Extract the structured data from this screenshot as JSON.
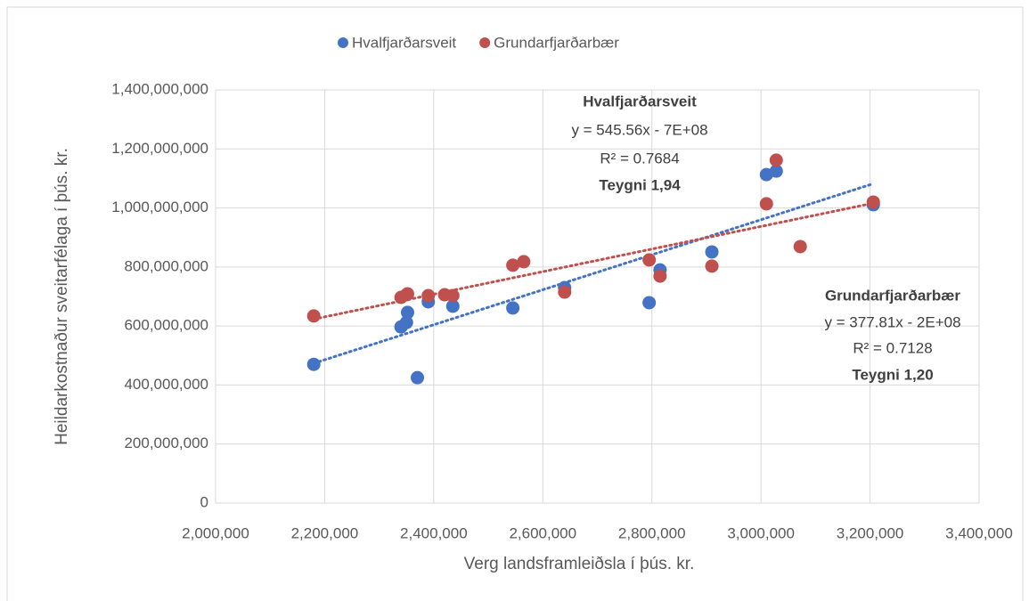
{
  "chart_data": {
    "type": "scatter",
    "x_label": "Verg landsframleiðsla í þús. kr.",
    "y_label": "Heildarkostnaður sveitarfélaga í þús. kr.",
    "series": [
      {
        "name": "Hvalfjarðarsveit",
        "color": "#4472c4",
        "x": [
          2180000,
          2340000,
          2350000,
          2352000,
          2390000,
          2370000,
          2435000,
          2545000,
          2640000,
          2795000,
          2815000,
          2910000,
          3010000,
          3028000,
          3206000
        ],
        "values": [
          470000000,
          597000000,
          612000000,
          646000000,
          682000000,
          425000000,
          667000000,
          661000000,
          730000000,
          679000000,
          790000000,
          851000000,
          1113000000,
          1125000000,
          1011000000
        ]
      },
      {
        "name": "Grundarfjarðarbær",
        "color": "#c0504d",
        "x": [
          2180000,
          2340000,
          2350000,
          2352000,
          2390000,
          2420000,
          2435000,
          2545000,
          2565000,
          2640000,
          2795000,
          2815000,
          2910000,
          3010000,
          3028000,
          3072000,
          3206000
        ],
        "values": [
          634000000,
          697000000,
          706000000,
          709000000,
          703000000,
          706000000,
          703000000,
          806000000,
          818000000,
          715000000,
          824000000,
          769000000,
          803000000,
          1014000000,
          1162000000,
          869000000,
          1020000000
        ]
      }
    ],
    "trendline": "linear",
    "annotations": [
      {
        "title": "Hvalfjarðarsveit",
        "equation": "y = 545.56x - 7E+08",
        "r2": "R² = 0.7684",
        "elasticity": "Teygni 1,94"
      },
      {
        "title": "Grundarfjarðarbær",
        "equation": "y = 377.81x - 2E+08",
        "r2": "R² = 0.7128",
        "elasticity": "Teygni 1,20"
      }
    ],
    "xlim": [
      2000000,
      3400000
    ],
    "xticks": [
      {
        "value": 2000000,
        "label": "2,000,000"
      },
      {
        "value": 2200000,
        "label": "2,200,000"
      },
      {
        "value": 2400000,
        "label": "2,400,000"
      },
      {
        "value": 2600000,
        "label": "2,600,000"
      },
      {
        "value": 2800000,
        "label": "2,800,000"
      },
      {
        "value": 3000000,
        "label": "3,000,000"
      },
      {
        "value": 3200000,
        "label": "3,200,000"
      },
      {
        "value": 3400000,
        "label": "3,400,000"
      }
    ],
    "ylim": [
      0,
      1400000000
    ],
    "yticks": [
      0,
      {
        "value": 200000000,
        "label": "200,000,000"
      },
      {
        "value": 400000000,
        "label": "400,000,000"
      },
      {
        "value": 600000000,
        "label": "600,000,000"
      },
      {
        "value": 800000000,
        "label": "800,000,000"
      },
      {
        "value": 1000000000,
        "label": "1,000,000,000"
      },
      {
        "value": 1200000000,
        "label": "1,200,000,000"
      },
      {
        "value": 1400000000,
        "label": "1,400,000,000"
      }
    ],
    "grid": true,
    "legend": "top"
  }
}
